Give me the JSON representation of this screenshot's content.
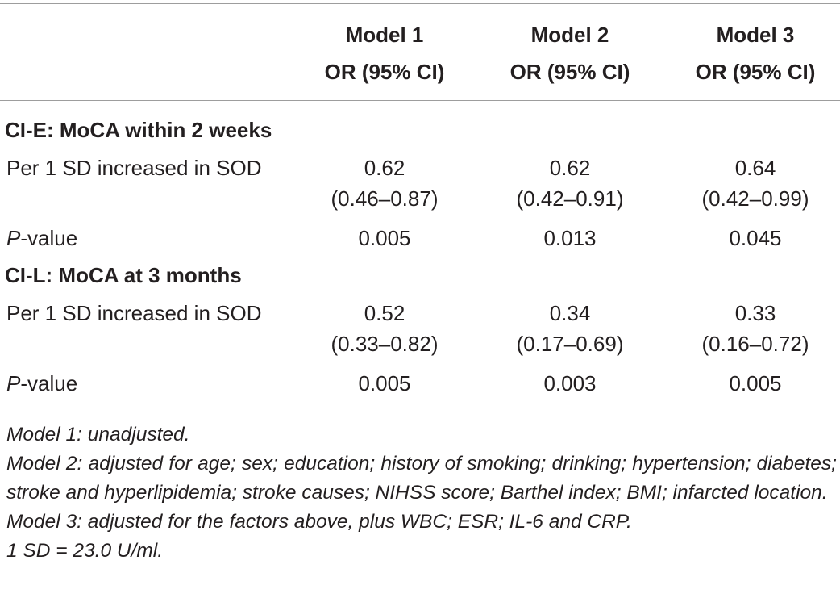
{
  "header": {
    "columns": [
      {
        "model": "Model 1",
        "stat": "OR (95% CI)"
      },
      {
        "model": "Model 2",
        "stat": "OR (95% CI)"
      },
      {
        "model": "Model 3",
        "stat": "OR (95% CI)"
      }
    ]
  },
  "sections": [
    {
      "title": "CI-E: MoCA within 2 weeks",
      "or_label": "Per 1 SD increased in SOD",
      "or_values": [
        {
          "est": "0.62",
          "ci": "(0.46–0.87)"
        },
        {
          "est": "0.62",
          "ci": "(0.42–0.91)"
        },
        {
          "est": "0.64",
          "ci": "(0.42–0.99)"
        }
      ],
      "p_label_italic": "P",
      "p_label_rest": "-value",
      "p_values": [
        "0.005",
        "0.013",
        "0.045"
      ]
    },
    {
      "title": "CI-L: MoCA at 3 months",
      "or_label": "Per 1 SD increased in SOD",
      "or_values": [
        {
          "est": "0.52",
          "ci": "(0.33–0.82)"
        },
        {
          "est": "0.34",
          "ci": "(0.17–0.69)"
        },
        {
          "est": "0.33",
          "ci": "(0.16–0.72)"
        }
      ],
      "p_label_italic": "P",
      "p_label_rest": "-value",
      "p_values": [
        "0.005",
        "0.003",
        "0.005"
      ]
    }
  ],
  "footnotes": [
    "Model 1: unadjusted.",
    "Model 2: adjusted for age; sex; education; history of smoking; drinking; hypertension; diabetes; stroke and hyperlipidemia; stroke causes; NIHSS score; Barthel index; BMI; infarcted location.",
    "Model 3: adjusted for the factors above, plus WBC; ESR; IL-6 and CRP.",
    "1 SD = 23.0 U/ml."
  ]
}
